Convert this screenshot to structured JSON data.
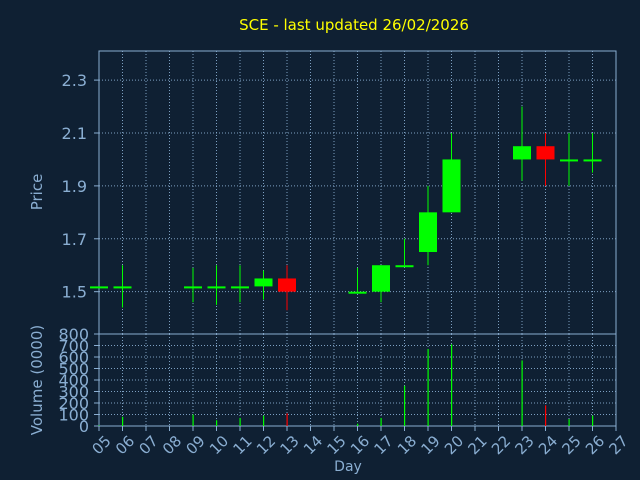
{
  "title": "SCE - last updated 26/02/2026",
  "colors": {
    "background": "#0f2033",
    "title": "#ffff00",
    "axis_text": "#8aaed2",
    "frame": "#8aaed2",
    "grid": "#8aaed2",
    "up": "#00ff00",
    "down": "#ff0000"
  },
  "chart_data": [
    {
      "type": "candlestick",
      "title": "SCE - last updated 26/02/2026",
      "ylabel": "Price",
      "xlabel": "",
      "ylim": [
        1.34,
        2.41
      ],
      "xlim": [
        5,
        27
      ],
      "yticks": [
        1.5,
        1.7,
        1.9,
        2.1,
        2.3
      ],
      "ytick_labels": [
        "1.5",
        "1.7",
        "1.9",
        "2.1",
        "2.3"
      ],
      "grid": true,
      "candles": [
        {
          "day": 5,
          "open": 1.52,
          "high": 1.52,
          "low": 1.52,
          "close": 1.52
        },
        {
          "day": 6,
          "open": 1.52,
          "high": 1.6,
          "low": 1.44,
          "close": 1.52
        },
        {
          "day": 9,
          "open": 1.52,
          "high": 1.59,
          "low": 1.46,
          "close": 1.52
        },
        {
          "day": 10,
          "open": 1.52,
          "high": 1.6,
          "low": 1.45,
          "close": 1.52
        },
        {
          "day": 11,
          "open": 1.52,
          "high": 1.6,
          "low": 1.46,
          "close": 1.52
        },
        {
          "day": 12,
          "open": 1.52,
          "high": 1.58,
          "low": 1.47,
          "close": 1.55
        },
        {
          "day": 13,
          "open": 1.55,
          "high": 1.6,
          "low": 1.43,
          "close": 1.5
        },
        {
          "day": 16,
          "open": 1.5,
          "high": 1.59,
          "low": 1.5,
          "close": 1.5
        },
        {
          "day": 17,
          "open": 1.5,
          "high": 1.6,
          "low": 1.46,
          "close": 1.6
        },
        {
          "day": 18,
          "open": 1.6,
          "high": 1.7,
          "low": 1.6,
          "close": 1.6
        },
        {
          "day": 19,
          "open": 1.65,
          "high": 1.9,
          "low": 1.6,
          "close": 1.8
        },
        {
          "day": 20,
          "open": 1.8,
          "high": 2.1,
          "low": 1.8,
          "close": 2.0
        },
        {
          "day": 23,
          "open": 2.0,
          "high": 2.2,
          "low": 1.92,
          "close": 2.05
        },
        {
          "day": 24,
          "open": 2.05,
          "high": 2.1,
          "low": 1.9,
          "close": 2.0
        },
        {
          "day": 25,
          "open": 2.0,
          "high": 2.1,
          "low": 1.9,
          "close": 2.0
        },
        {
          "day": 26,
          "open": 2.0,
          "high": 2.1,
          "low": 1.95,
          "close": 2.0
        }
      ]
    },
    {
      "type": "bar",
      "ylabel": "Volume (0000)",
      "xlabel": "Day",
      "ylim": [
        0,
        800
      ],
      "yticks": [
        0,
        100,
        200,
        300,
        400,
        500,
        600,
        700,
        800
      ],
      "ytick_labels": [
        "0",
        "100",
        "200",
        "300",
        "400",
        "500",
        "600",
        "700",
        "800"
      ],
      "xticks": [
        5,
        6,
        7,
        8,
        9,
        10,
        11,
        12,
        13,
        14,
        15,
        16,
        17,
        18,
        19,
        20,
        21,
        22,
        23,
        24,
        25,
        26,
        27
      ],
      "xtick_labels": [
        "05",
        "06",
        "07",
        "08",
        "09",
        "10",
        "11",
        "12",
        "13",
        "14",
        "15",
        "16",
        "17",
        "18",
        "19",
        "20",
        "21",
        "22",
        "23",
        "24",
        "25",
        "26",
        "27"
      ],
      "grid": true,
      "bars": [
        {
          "day": 5,
          "value": 5,
          "direction": "up"
        },
        {
          "day": 6,
          "value": 80,
          "direction": "up"
        },
        {
          "day": 9,
          "value": 100,
          "direction": "up"
        },
        {
          "day": 10,
          "value": 50,
          "direction": "up"
        },
        {
          "day": 11,
          "value": 70,
          "direction": "up"
        },
        {
          "day": 12,
          "value": 90,
          "direction": "up"
        },
        {
          "day": 13,
          "value": 110,
          "direction": "down"
        },
        {
          "day": 16,
          "value": 20,
          "direction": "up"
        },
        {
          "day": 17,
          "value": 70,
          "direction": "up"
        },
        {
          "day": 18,
          "value": 350,
          "direction": "up"
        },
        {
          "day": 19,
          "value": 670,
          "direction": "up"
        },
        {
          "day": 20,
          "value": 710,
          "direction": "up"
        },
        {
          "day": 23,
          "value": 570,
          "direction": "up"
        },
        {
          "day": 24,
          "value": 180,
          "direction": "down"
        },
        {
          "day": 25,
          "value": 60,
          "direction": "up"
        },
        {
          "day": 26,
          "value": 90,
          "direction": "up"
        }
      ]
    }
  ]
}
